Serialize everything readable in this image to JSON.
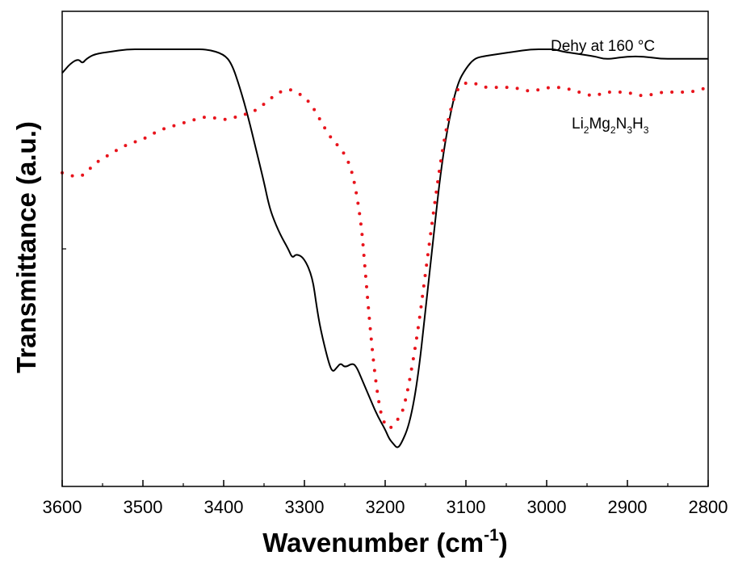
{
  "chart_data": {
    "type": "line",
    "xlabel": "Wavenumber (cm",
    "xlabel_superscript": "-1",
    "xlabel_suffix": ")",
    "ylabel": "Transmittance (a.u.)",
    "xlim": [
      3600,
      2800
    ],
    "x_reversed": true,
    "ylim": [
      0,
      1
    ],
    "x_ticks": [
      "3600",
      "3500",
      "3400",
      "3300",
      "3200",
      "3100",
      "3000",
      "2900",
      "2800"
    ],
    "grid": false,
    "series": [
      {
        "name": "Dehy at 160 °C",
        "color": "#000000",
        "style": "solid",
        "x": [
          3600,
          3590,
          3580,
          3575,
          3570,
          3560,
          3540,
          3520,
          3500,
          3480,
          3460,
          3440,
          3420,
          3400,
          3390,
          3380,
          3370,
          3360,
          3350,
          3345,
          3340,
          3330,
          3320,
          3315,
          3310,
          3300,
          3290,
          3285,
          3280,
          3270,
          3265,
          3260,
          3255,
          3250,
          3240,
          3235,
          3230,
          3225,
          3220,
          3210,
          3200,
          3195,
          3190,
          3185,
          3180,
          3170,
          3160,
          3150,
          3140,
          3130,
          3120,
          3110,
          3100,
          3090,
          3080,
          3060,
          3040,
          3020,
          3000,
          2990,
          2980,
          2960,
          2940,
          2930,
          2920,
          2900,
          2880,
          2860,
          2840,
          2820,
          2800
        ],
        "y": [
          0.87,
          0.89,
          0.9,
          0.89,
          0.9,
          0.91,
          0.915,
          0.92,
          0.92,
          0.92,
          0.92,
          0.92,
          0.92,
          0.91,
          0.89,
          0.84,
          0.78,
          0.71,
          0.64,
          0.6,
          0.57,
          0.53,
          0.5,
          0.48,
          0.49,
          0.48,
          0.44,
          0.38,
          0.33,
          0.26,
          0.24,
          0.25,
          0.26,
          0.25,
          0.26,
          0.25,
          0.23,
          0.21,
          0.19,
          0.15,
          0.12,
          0.1,
          0.09,
          0.08,
          0.09,
          0.13,
          0.22,
          0.37,
          0.53,
          0.68,
          0.78,
          0.85,
          0.88,
          0.9,
          0.905,
          0.91,
          0.915,
          0.92,
          0.92,
          0.92,
          0.915,
          0.91,
          0.905,
          0.9,
          0.9,
          0.905,
          0.905,
          0.9,
          0.9,
          0.9,
          0.9
        ]
      },
      {
        "name": "Li2Mg2N3H3",
        "label_parts": [
          "Li",
          "2",
          "Mg",
          "2",
          "N",
          "3",
          "H",
          "3"
        ],
        "color": "#e8141c",
        "style": "dotted",
        "x": [
          3600,
          3580,
          3570,
          3560,
          3540,
          3520,
          3500,
          3480,
          3460,
          3440,
          3420,
          3400,
          3380,
          3360,
          3340,
          3320,
          3300,
          3290,
          3280,
          3270,
          3260,
          3250,
          3240,
          3230,
          3225,
          3220,
          3215,
          3210,
          3205,
          3200,
          3195,
          3190,
          3185,
          3180,
          3175,
          3170,
          3160,
          3150,
          3140,
          3130,
          3120,
          3110,
          3100,
          3090,
          3080,
          3060,
          3040,
          3020,
          3000,
          2980,
          2960,
          2940,
          2930,
          2920,
          2900,
          2880,
          2860,
          2840,
          2820,
          2800
        ],
        "y": [
          0.66,
          0.65,
          0.66,
          0.68,
          0.7,
          0.72,
          0.73,
          0.75,
          0.76,
          0.77,
          0.78,
          0.77,
          0.78,
          0.79,
          0.82,
          0.84,
          0.82,
          0.8,
          0.77,
          0.74,
          0.72,
          0.7,
          0.66,
          0.56,
          0.46,
          0.36,
          0.27,
          0.2,
          0.15,
          0.13,
          0.12,
          0.13,
          0.14,
          0.15,
          0.18,
          0.22,
          0.32,
          0.45,
          0.58,
          0.7,
          0.79,
          0.84,
          0.85,
          0.85,
          0.84,
          0.84,
          0.84,
          0.83,
          0.84,
          0.84,
          0.83,
          0.82,
          0.83,
          0.83,
          0.83,
          0.82,
          0.83,
          0.83,
          0.83,
          0.84
        ]
      }
    ],
    "annotations": {
      "dehy": "Dehy at 160 °C"
    }
  }
}
